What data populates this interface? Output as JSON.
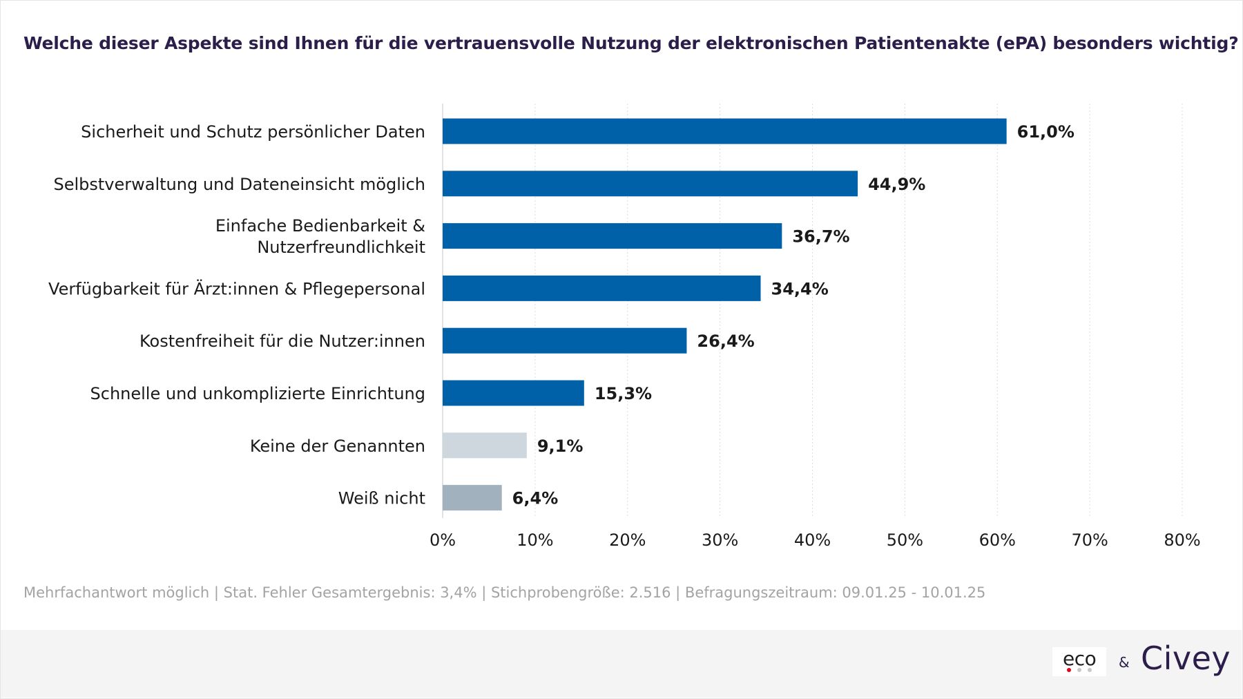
{
  "title": "Welche dieser Aspekte sind Ihnen für die vertrauensvolle Nutzung der elektronischen Patientenakte (ePA) besonders wichtig?",
  "footnote": "Mehrfachantwort möglich | Stat. Fehler Gesamtergebnis: 3,4% | Stichprobengröße: 2.516 | Befragungszeitraum: 09.01.25 - 10.01.25",
  "logos": {
    "eco": "eco",
    "ampersand": "&",
    "civey": "Civey"
  },
  "colors": {
    "primary_bar": "#0060a8",
    "neutral_bar_light": "#cfd7de",
    "neutral_bar_dark": "#a1b1bd",
    "title": "#2c1e4a",
    "footnote": "#a3a3a3",
    "eco_dot_red": "#e2001a",
    "eco_dot_gray": "#c8c8c8"
  },
  "chart_data": {
    "type": "bar",
    "orientation": "horizontal",
    "categories": [
      "Sicherheit und Schutz persönlicher Daten",
      "Selbstverwaltung und Dateneinsicht möglich",
      "Einfache Bedienbarkeit & Nutzerfreundlichkeit",
      "Verfügbarkeit für Ärzt:innen & Pflegepersonal",
      "Kostenfreiheit für die Nutzer:innen",
      "Schnelle und unkomplizierte Einrichtung",
      "Keine der Genannten",
      "Weiß nicht"
    ],
    "category_lines": [
      [
        "Sicherheit und Schutz persönlicher Daten"
      ],
      [
        "Selbstverwaltung und Dateneinsicht möglich"
      ],
      [
        "Einfache Bedienbarkeit &",
        "Nutzerfreundlichkeit"
      ],
      [
        "Verfügbarkeit für Ärzt:innen & Pflegepersonal"
      ],
      [
        "Kostenfreiheit für die Nutzer:innen"
      ],
      [
        "Schnelle und unkomplizierte Einrichtung"
      ],
      [
        "Keine der Genannten"
      ],
      [
        "Weiß nicht"
      ]
    ],
    "values": [
      61.0,
      44.9,
      36.7,
      34.4,
      26.4,
      15.3,
      9.1,
      6.4
    ],
    "value_labels": [
      "61,0%",
      "44,9%",
      "36,7%",
      "34,4%",
      "26,4%",
      "15,3%",
      "9,1%",
      "6,4%"
    ],
    "bar_colors": [
      "#0060a8",
      "#0060a8",
      "#0060a8",
      "#0060a8",
      "#0060a8",
      "#0060a8",
      "#cfd7de",
      "#a1b1bd"
    ],
    "xlim": [
      0,
      80
    ],
    "x_ticks": [
      0,
      10,
      20,
      30,
      40,
      50,
      60,
      70,
      80
    ],
    "x_tick_labels": [
      "0%",
      "10%",
      "20%",
      "30%",
      "40%",
      "50%",
      "60%",
      "70%",
      "80%"
    ],
    "grid": "vertical dotted",
    "legend": "none"
  }
}
